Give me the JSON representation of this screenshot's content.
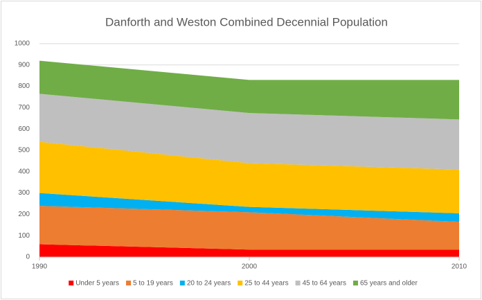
{
  "chart_data": {
    "type": "stacked_area",
    "title": "Danforth and Weston Combined Decennial Population",
    "x": [
      1990,
      2000,
      2010
    ],
    "xlim": [
      1990,
      2010
    ],
    "xticks": [
      1990,
      2000,
      2010
    ],
    "ylim": [
      0,
      1000
    ],
    "yticks": [
      0,
      100,
      200,
      300,
      400,
      500,
      600,
      700,
      800,
      900,
      1000
    ],
    "grid": true,
    "legend": "bottom",
    "series": [
      {
        "name": "Under 5 years",
        "color": "#ff0000",
        "values": [
          60,
          35,
          35
        ]
      },
      {
        "name": "5 to 19 years",
        "color": "#ed7d31",
        "values": [
          180,
          175,
          130
        ]
      },
      {
        "name": "20 to 24 years",
        "color": "#00b0f0",
        "values": [
          60,
          25,
          40
        ]
      },
      {
        "name": "25 to 44 years",
        "color": "#ffc000",
        "values": [
          240,
          205,
          205
        ]
      },
      {
        "name": "45 to 64 years",
        "color": "#bfbfbf",
        "values": [
          225,
          235,
          235
        ]
      },
      {
        "name": "65 years and older",
        "color": "#70ad47",
        "values": [
          155,
          155,
          185
        ]
      }
    ]
  }
}
